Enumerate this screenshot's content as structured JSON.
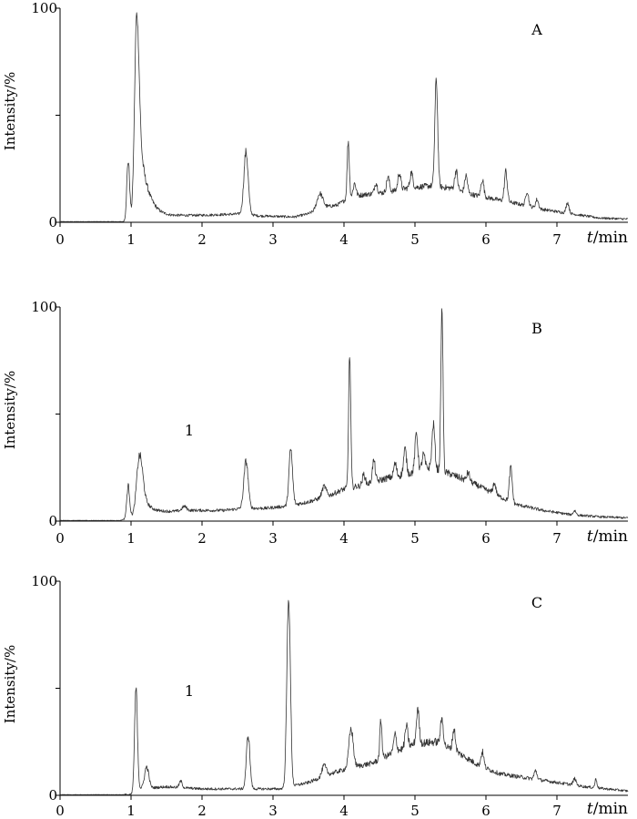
{
  "chart_data": [
    {
      "type": "line",
      "panel_label": "A",
      "annotation": "",
      "ylabel": "Intensity/%",
      "xlabel_var": "t",
      "xlabel_unit": "/min",
      "xlim": [
        0,
        8
      ],
      "ylim": [
        0,
        100
      ],
      "x_ticks": [
        "0",
        "1",
        "2",
        "3",
        "4",
        "5",
        "6",
        "7"
      ],
      "y_ticks": [
        "0",
        "100"
      ],
      "baseline": [
        [
          0,
          0.3
        ],
        [
          0.9,
          0.3
        ],
        [
          1.0,
          1
        ],
        [
          1.4,
          2
        ],
        [
          1.7,
          3
        ],
        [
          2.2,
          3.5
        ],
        [
          2.6,
          4
        ],
        [
          2.8,
          3
        ],
        [
          3.3,
          2.5
        ],
        [
          3.5,
          4
        ],
        [
          3.7,
          7
        ],
        [
          3.9,
          8
        ],
        [
          4.1,
          12
        ],
        [
          4.3,
          13
        ],
        [
          4.6,
          14
        ],
        [
          4.9,
          16
        ],
        [
          5.2,
          17
        ],
        [
          5.5,
          16
        ],
        [
          5.8,
          13
        ],
        [
          6.1,
          11
        ],
        [
          6.4,
          9
        ],
        [
          6.8,
          6
        ],
        [
          7.2,
          4
        ],
        [
          7.6,
          2
        ],
        [
          8.0,
          1.5
        ]
      ],
      "peaks": [
        {
          "x": 0.96,
          "y": 28,
          "w": 0.02
        },
        {
          "x": 1.08,
          "y": 96,
          "w": 0.03,
          "tail": 0.12
        },
        {
          "x": 2.62,
          "y": 29,
          "w": 0.03
        },
        {
          "x": 3.66,
          "y": 7,
          "w": 0.04
        },
        {
          "x": 4.06,
          "y": 27,
          "w": 0.015
        },
        {
          "x": 4.15,
          "y": 6,
          "w": 0.02
        },
        {
          "x": 4.45,
          "y": 5,
          "w": 0.02
        },
        {
          "x": 4.62,
          "y": 7,
          "w": 0.02
        },
        {
          "x": 4.78,
          "y": 8,
          "w": 0.02
        },
        {
          "x": 4.95,
          "y": 7,
          "w": 0.02
        },
        {
          "x": 5.3,
          "y": 50,
          "w": 0.02
        },
        {
          "x": 5.58,
          "y": 9,
          "w": 0.02
        },
        {
          "x": 5.72,
          "y": 8,
          "w": 0.02
        },
        {
          "x": 5.95,
          "y": 8,
          "w": 0.02
        },
        {
          "x": 6.28,
          "y": 14,
          "w": 0.02
        },
        {
          "x": 6.58,
          "y": 7,
          "w": 0.02
        },
        {
          "x": 6.72,
          "y": 4,
          "w": 0.02
        },
        {
          "x": 7.15,
          "y": 5,
          "w": 0.02
        }
      ]
    },
    {
      "type": "line",
      "panel_label": "B",
      "annotation": "1",
      "ylabel": "Intensity/%",
      "xlabel_var": "t",
      "xlabel_unit": "/min",
      "xlim": [
        0,
        8
      ],
      "ylim": [
        0,
        100
      ],
      "x_ticks": [
        "0",
        "1",
        "2",
        "3",
        "4",
        "5",
        "6",
        "7"
      ],
      "y_ticks": [
        "0",
        "100"
      ],
      "baseline": [
        [
          0,
          0.3
        ],
        [
          0.85,
          0.3
        ],
        [
          1.0,
          2
        ],
        [
          1.4,
          4
        ],
        [
          1.8,
          5
        ],
        [
          2.3,
          5
        ],
        [
          2.6,
          6
        ],
        [
          2.9,
          6
        ],
        [
          3.2,
          7
        ],
        [
          3.5,
          9
        ],
        [
          3.8,
          12
        ],
        [
          4.0,
          15
        ],
        [
          4.3,
          17
        ],
        [
          4.6,
          20
        ],
        [
          4.9,
          22
        ],
        [
          5.2,
          25
        ],
        [
          5.5,
          22
        ],
        [
          5.8,
          18
        ],
        [
          6.1,
          13
        ],
        [
          6.4,
          8
        ],
        [
          6.8,
          5
        ],
        [
          7.2,
          3
        ],
        [
          7.6,
          2
        ],
        [
          8.0,
          1.5
        ]
      ],
      "peaks": [
        {
          "x": 0.96,
          "y": 15,
          "w": 0.02
        },
        {
          "x": 1.12,
          "y": 28,
          "w": 0.04,
          "tail": 0.1
        },
        {
          "x": 1.75,
          "y": 2,
          "w": 0.03
        },
        {
          "x": 2.62,
          "y": 22,
          "w": 0.03
        },
        {
          "x": 3.25,
          "y": 26,
          "w": 0.025
        },
        {
          "x": 3.72,
          "y": 5,
          "w": 0.03
        },
        {
          "x": 4.08,
          "y": 62,
          "w": 0.015
        },
        {
          "x": 4.28,
          "y": 5,
          "w": 0.02
        },
        {
          "x": 4.42,
          "y": 10,
          "w": 0.02
        },
        {
          "x": 4.72,
          "y": 6,
          "w": 0.02
        },
        {
          "x": 4.86,
          "y": 12,
          "w": 0.02
        },
        {
          "x": 5.02,
          "y": 18,
          "w": 0.02
        },
        {
          "x": 5.12,
          "y": 7,
          "w": 0.02
        },
        {
          "x": 5.26,
          "y": 21,
          "w": 0.02
        },
        {
          "x": 5.38,
          "y": 76,
          "w": 0.015
        },
        {
          "x": 5.75,
          "y": 4,
          "w": 0.02
        },
        {
          "x": 6.12,
          "y": 5,
          "w": 0.02
        },
        {
          "x": 6.35,
          "y": 16,
          "w": 0.02
        },
        {
          "x": 7.25,
          "y": 2,
          "w": 0.02
        }
      ]
    },
    {
      "type": "line",
      "panel_label": "C",
      "annotation": "1",
      "ylabel": "Intensity/%",
      "xlabel_var": "t",
      "xlabel_unit": "/min",
      "xlim": [
        0,
        8
      ],
      "ylim": [
        0,
        100
      ],
      "x_ticks": [
        "0",
        "1",
        "2",
        "3",
        "4",
        "5",
        "6",
        "7"
      ],
      "y_ticks": [
        "0",
        "100"
      ],
      "baseline": [
        [
          0,
          0.3
        ],
        [
          1.0,
          0.3
        ],
        [
          1.1,
          3
        ],
        [
          1.5,
          4
        ],
        [
          2.0,
          3
        ],
        [
          2.5,
          3
        ],
        [
          2.8,
          3
        ],
        [
          3.1,
          3
        ],
        [
          3.5,
          6
        ],
        [
          3.8,
          10
        ],
        [
          4.1,
          13
        ],
        [
          4.4,
          15
        ],
        [
          4.7,
          20
        ],
        [
          5.0,
          24
        ],
        [
          5.3,
          25
        ],
        [
          5.6,
          20
        ],
        [
          5.9,
          14
        ],
        [
          6.2,
          10
        ],
        [
          6.6,
          8
        ],
        [
          7.0,
          6
        ],
        [
          7.4,
          4
        ],
        [
          8.0,
          2
        ]
      ],
      "peaks": [
        {
          "x": 1.07,
          "y": 48,
          "w": 0.02
        },
        {
          "x": 1.22,
          "y": 10,
          "w": 0.03
        },
        {
          "x": 1.7,
          "y": 3,
          "w": 0.02
        },
        {
          "x": 2.65,
          "y": 25,
          "w": 0.025
        },
        {
          "x": 3.22,
          "y": 88,
          "w": 0.025
        },
        {
          "x": 3.72,
          "y": 5,
          "w": 0.03
        },
        {
          "x": 4.1,
          "y": 18,
          "w": 0.03
        },
        {
          "x": 4.52,
          "y": 18,
          "w": 0.015
        },
        {
          "x": 4.72,
          "y": 8,
          "w": 0.02
        },
        {
          "x": 4.88,
          "y": 10,
          "w": 0.02
        },
        {
          "x": 5.04,
          "y": 16,
          "w": 0.02
        },
        {
          "x": 5.38,
          "y": 12,
          "w": 0.02
        },
        {
          "x": 5.55,
          "y": 10,
          "w": 0.02
        },
        {
          "x": 5.95,
          "y": 7,
          "w": 0.02
        },
        {
          "x": 6.7,
          "y": 4,
          "w": 0.02
        },
        {
          "x": 7.25,
          "y": 3,
          "w": 0.02
        },
        {
          "x": 7.55,
          "y": 4,
          "w": 0.015
        }
      ]
    }
  ]
}
